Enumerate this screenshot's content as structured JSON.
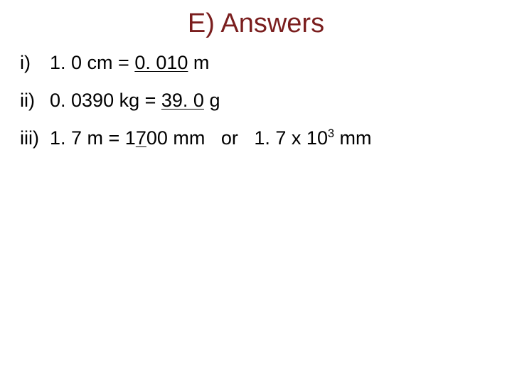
{
  "title": "E) Answers",
  "items": [
    {
      "marker": "i)",
      "prefix": "1. 0 cm = ",
      "underlined": "0. 010",
      "suffix": " m"
    },
    {
      "marker": "ii)",
      "prefix": "0. 0390 kg = ",
      "underlined": "39. 0",
      "suffix": " g"
    },
    {
      "marker": "iii)",
      "prefix": "1. 7 m = 1",
      "underlined": "7",
      "mid": "00 mm   or   1. 7 x 10",
      "sup": "3",
      "suffix": " mm"
    }
  ]
}
